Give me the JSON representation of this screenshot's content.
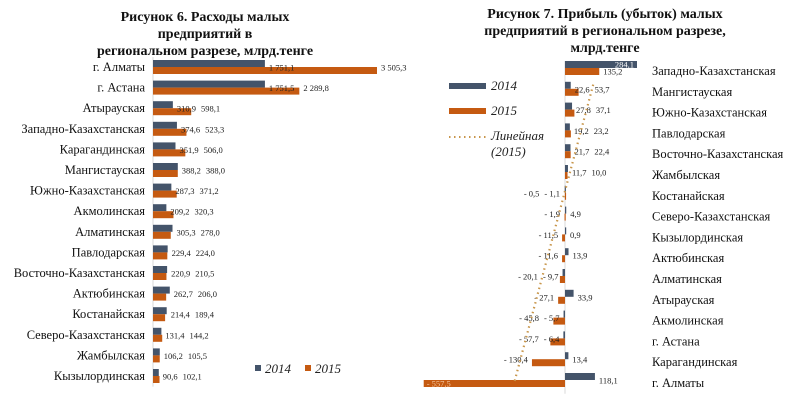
{
  "chart_data": [
    {
      "type": "bar",
      "orientation": "horizontal",
      "title": "Рисунок 6. Расходы малых предприятий в региональном разрезе, млрд.тенге",
      "title_lines": [
        "Рисунок 6. Расходы малых предприятий в",
        "региональном разрезе, млрд.тенге"
      ],
      "categories": [
        "г. Алматы",
        "г. Астана",
        "Атырауская",
        "Западно-Казахстанская",
        "Карагандинская",
        "Мангистауская",
        "Южно-Казахстанская",
        "Акмолинская",
        "Алматинская",
        "Павлодарская",
        "Восточно-Казахстанская",
        "Актюбинская",
        "Костанайская",
        "Северо-Казахстанская",
        "Жамбылская",
        "Кызылординская"
      ],
      "series": [
        {
          "name": "2014",
          "color": "#44546a",
          "values": [
            1751.1,
            1751.5,
            310.9,
            374.6,
            351.9,
            388.2,
            287.3,
            209.2,
            305.3,
            229.4,
            220.9,
            262.7,
            214.4,
            131.4,
            106.2,
            90.6
          ],
          "labels": [
            "1 751,1",
            "1 751,5",
            "310,9",
            "374,6",
            "351,9",
            "388,2",
            "287,3",
            "209,2",
            "305,3",
            "229,4",
            "220,9",
            "262,7",
            "214,4",
            "131,4",
            "106,2",
            "90,6"
          ]
        },
        {
          "name": "2015",
          "color": "#c55a11",
          "values": [
            3505.3,
            2289.8,
            598.1,
            523.3,
            506.0,
            388.0,
            371.2,
            320.3,
            278.0,
            224.0,
            210.5,
            206.0,
            189.4,
            144.2,
            105.5,
            102.1
          ],
          "labels": [
            "3 505,3",
            "2 289,8",
            "598,1",
            "523,3",
            "506,0",
            "388,0",
            "371,2",
            "320,3",
            "278,0",
            "224,0",
            "210,5",
            "206,0",
            "189,4",
            "144,2",
            "105,5",
            "102,1"
          ]
        }
      ],
      "legend": [
        "2014",
        "2015"
      ],
      "legend_position": "bottom-right"
    },
    {
      "type": "bar",
      "orientation": "horizontal",
      "title": "Рисунок 7. Прибыль (убыток) малых предприятий в региональном разрезе, млрд.тенге",
      "title_lines": [
        "Рисунок 7. Прибыль (убыток) малых",
        "предприятий в региональном разрезе,",
        "млрд.тенге"
      ],
      "categories": [
        "Западно-Казахстанская",
        "Мангистауская",
        "Южно-Казахстанская",
        "Павлодарская",
        "Восточно-Казахстанская",
        "Жамбылская",
        "Костанайская",
        "Северо-Казахстанская",
        "Кызылординская",
        "Актюбинская",
        "Алматинская",
        "Атырауская",
        "Акмолинская",
        "г. Астана",
        "Карагандинская",
        "г. Алматы"
      ],
      "series": [
        {
          "name": "2014",
          "color": "#44546a",
          "values": [
            284.1,
            22.6,
            27.8,
            19.2,
            21.7,
            11.7,
            -1.1,
            4.9,
            0.9,
            13.9,
            -9.7,
            33.9,
            -5.7,
            -6.4,
            13.4,
            118.1
          ],
          "labels": [
            "284,1",
            "22,6",
            "27,8",
            "19,2",
            "21,7",
            "11,7",
            "- 1,1",
            "4,9",
            "0,9",
            "13,9",
            "- 9,7",
            "33,9",
            "- 5,7",
            "- 6,4",
            "13,4",
            "118,1"
          ]
        },
        {
          "name": "2015",
          "color": "#c55a11",
          "values": [
            135.2,
            53.7,
            37.1,
            23.2,
            22.4,
            10.0,
            -0.5,
            -1.9,
            -11.5,
            -11.6,
            -20.1,
            -27.1,
            -45.8,
            -57.7,
            -130.4,
            -557.5
          ],
          "labels": [
            "135,2",
            "53,7",
            "37,1",
            "23,2",
            "22,4",
            "10,0",
            "- 0,5",
            "- 1,9",
            "- 11,5",
            "- 11,6",
            "- 20,1",
            "- 27,1",
            "- 45,8",
            "- 57,7",
            "- 130,4",
            "- 557,5"
          ]
        }
      ],
      "trendline": {
        "name": "Линейная (2015)",
        "lines": [
          "Линейная",
          "(2015)"
        ],
        "color": "#c8964b"
      },
      "legend": [
        "2014",
        "2015",
        "Линейная (2015)"
      ],
      "legend_position": "left"
    }
  ]
}
